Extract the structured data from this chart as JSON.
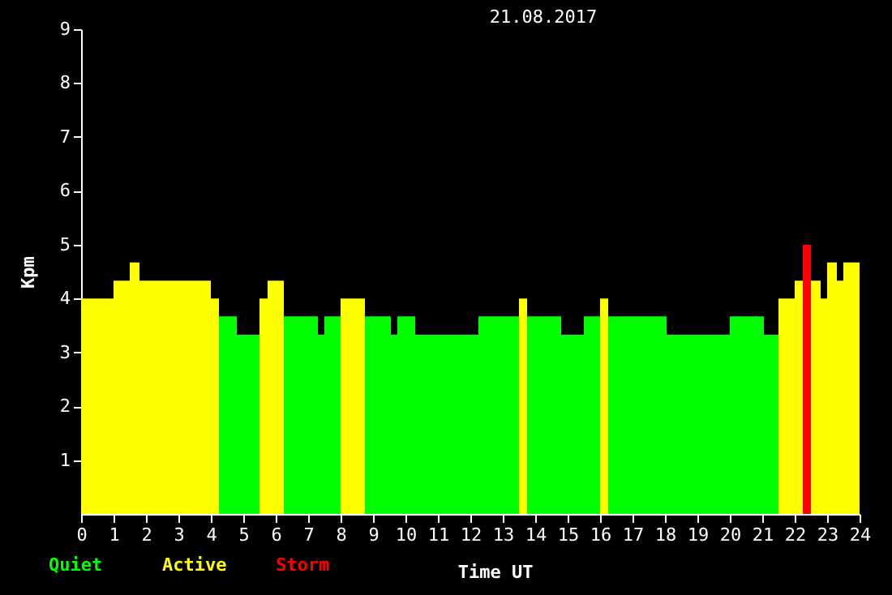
{
  "chart_data": {
    "type": "histogram",
    "title": "21.08.2017",
    "xlabel": "Time UT",
    "ylabel": "Kpm",
    "bins": [
      0,
      1,
      1.5,
      1.8,
      4,
      4.25,
      4.8,
      5.5,
      5.75,
      6.25,
      7.3,
      7.5,
      8,
      8.75,
      9.55,
      9.75,
      10.3,
      12.25,
      13.5,
      13.75,
      14.8,
      15.5,
      16,
      16.25,
      18.05,
      20,
      21.05,
      21.5,
      22,
      22.25,
      22.5,
      22.8,
      23,
      23.3,
      23.5,
      24
    ],
    "series": [
      {
        "name": "Quiet",
        "color": "#00ff00",
        "values": [
          null,
          null,
          null,
          null,
          null,
          3.67,
          3.33,
          null,
          null,
          3.67,
          3.33,
          3.67,
          null,
          3.67,
          3.33,
          3.67,
          3.33,
          3.67,
          null,
          3.67,
          3.33,
          3.67,
          null,
          3.67,
          3.33,
          3.67,
          3.33,
          null,
          null,
          null,
          null,
          null,
          null,
          null,
          null
        ]
      },
      {
        "name": "Active",
        "color": "#ffff00",
        "values": [
          4,
          4.33,
          4.67,
          4.33,
          4,
          null,
          null,
          4,
          4.33,
          null,
          null,
          null,
          4,
          null,
          null,
          null,
          null,
          null,
          4,
          null,
          null,
          null,
          4,
          null,
          null,
          null,
          null,
          4,
          4.33,
          null,
          4.33,
          4,
          4.67,
          4.33,
          4.67
        ]
      },
      {
        "name": "Storm",
        "color": "#ff0000",
        "values": [
          null,
          null,
          null,
          null,
          null,
          null,
          null,
          null,
          null,
          null,
          null,
          null,
          null,
          null,
          null,
          null,
          null,
          null,
          null,
          null,
          null,
          null,
          null,
          null,
          null,
          null,
          null,
          null,
          null,
          5,
          null,
          null,
          null,
          null,
          null
        ]
      }
    ],
    "xlim": [
      0,
      24
    ],
    "xticks": [
      0,
      1,
      2,
      3,
      4,
      5,
      6,
      7,
      8,
      9,
      10,
      11,
      12,
      13,
      14,
      15,
      16,
      17,
      18,
      19,
      20,
      21,
      22,
      23,
      24
    ],
    "ylim": [
      0,
      9
    ],
    "yticks": [
      1,
      2,
      3,
      4,
      5,
      6,
      7,
      8,
      9
    ],
    "grid": false
  }
}
